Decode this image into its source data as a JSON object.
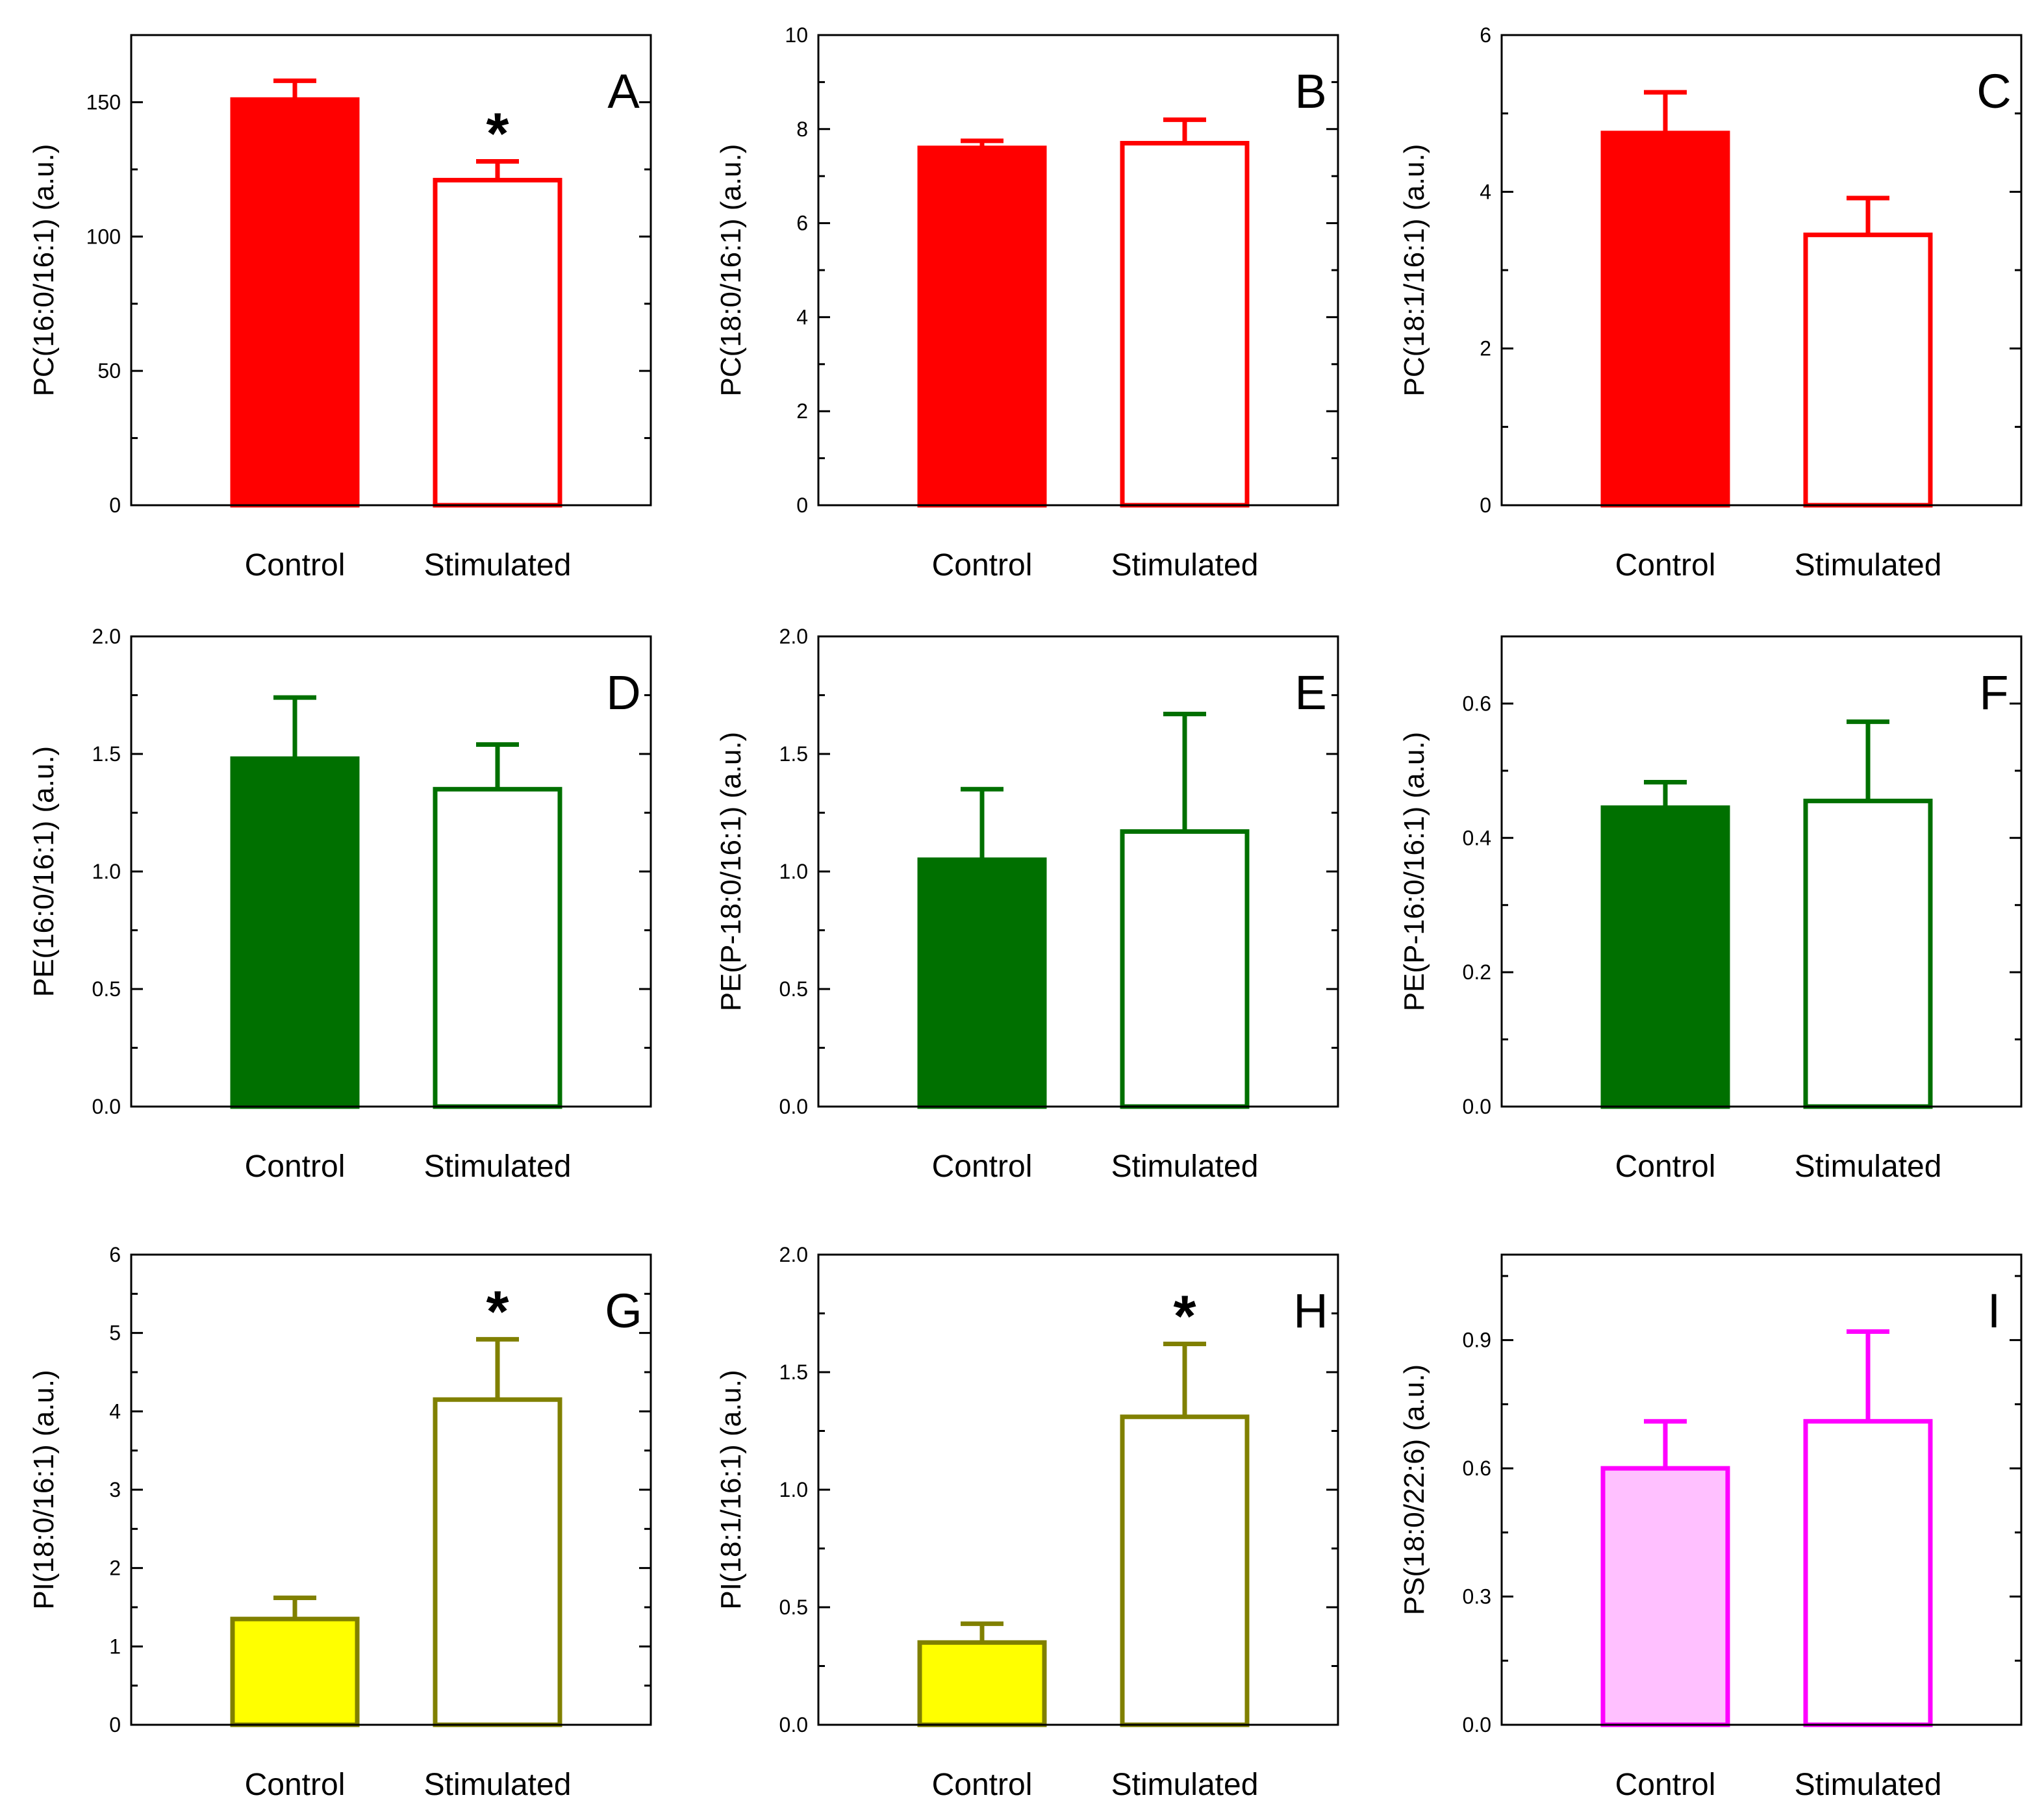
{
  "chart_data": [
    {
      "panel": "A",
      "type": "bar",
      "ylabel": "PC(16:0/16:1) (a.u.)",
      "ylim": [
        0,
        175
      ],
      "yticks": [
        0,
        50,
        100,
        150
      ],
      "categories": [
        "Control",
        "Stimulated"
      ],
      "values": [
        151,
        121
      ],
      "errors": [
        7,
        7
      ],
      "color": "#ff0000",
      "significant": [
        false,
        true
      ],
      "sig_marker": "*"
    },
    {
      "panel": "B",
      "type": "bar",
      "ylabel": "PC(18:0/16:1) (a.u.)",
      "ylim": [
        0,
        10
      ],
      "yticks": [
        0,
        2,
        4,
        6,
        8,
        10
      ],
      "categories": [
        "Control",
        "Stimulated"
      ],
      "values": [
        7.6,
        7.7
      ],
      "errors": [
        0.15,
        0.5
      ],
      "color": "#ff0000",
      "significant": [
        false,
        false
      ],
      "sig_marker": "*"
    },
    {
      "panel": "C",
      "type": "bar",
      "ylabel": "PC(18:1/16:1) (a.u.)",
      "ylim": [
        0,
        6
      ],
      "yticks": [
        0,
        2,
        4,
        6
      ],
      "categories": [
        "Control",
        "Stimulated"
      ],
      "values": [
        4.75,
        3.45
      ],
      "errors": [
        0.52,
        0.47
      ],
      "color": "#ff0000",
      "significant": [
        false,
        false
      ],
      "sig_marker": "*"
    },
    {
      "panel": "D",
      "type": "bar",
      "ylabel": "PE(16:0/16:1) (a.u.)",
      "ylim": [
        0,
        2.0
      ],
      "yticks": [
        0.0,
        0.5,
        1.0,
        1.5,
        2.0
      ],
      "categories": [
        "Control",
        "Stimulated"
      ],
      "values": [
        1.48,
        1.35
      ],
      "errors": [
        0.26,
        0.19
      ],
      "color": "#007000",
      "significant": [
        false,
        false
      ],
      "sig_marker": "*"
    },
    {
      "panel": "E",
      "type": "bar",
      "ylabel": "PE(P-18:0/16:1) (a.u.)",
      "ylim": [
        0,
        2.0
      ],
      "yticks": [
        0.0,
        0.5,
        1.0,
        1.5,
        2.0
      ],
      "categories": [
        "Control",
        "Stimulated"
      ],
      "values": [
        1.05,
        1.17
      ],
      "errors": [
        0.3,
        0.5
      ],
      "color": "#007000",
      "significant": [
        false,
        false
      ],
      "sig_marker": "*"
    },
    {
      "panel": "F",
      "type": "bar",
      "ylabel": "PE(P-16:0/16:1) (a.u.)",
      "ylim": [
        0,
        0.7
      ],
      "yticks": [
        0.0,
        0.2,
        0.4,
        0.6
      ],
      "categories": [
        "Control",
        "Stimulated"
      ],
      "values": [
        0.445,
        0.455
      ],
      "errors": [
        0.038,
        0.118
      ],
      "color": "#007000",
      "significant": [
        false,
        false
      ],
      "sig_marker": "*"
    },
    {
      "panel": "G",
      "type": "bar",
      "ylabel": "PI(18:0/16:1) (a.u.)",
      "ylim": [
        0,
        6
      ],
      "yticks": [
        0,
        1,
        2,
        3,
        4,
        5,
        6
      ],
      "categories": [
        "Control",
        "Stimulated"
      ],
      "values": [
        1.35,
        4.15
      ],
      "errors": [
        0.27,
        0.77
      ],
      "color": "#ffff00",
      "edge_color": "#808000",
      "significant": [
        false,
        true
      ],
      "sig_marker": "*"
    },
    {
      "panel": "H",
      "type": "bar",
      "ylabel": "PI(18:1/16:1) (a.u.)",
      "ylim": [
        0,
        2.0
      ],
      "yticks": [
        0.0,
        0.5,
        1.0,
        1.5,
        2.0
      ],
      "categories": [
        "Control",
        "Stimulated"
      ],
      "values": [
        0.35,
        1.31
      ],
      "errors": [
        0.08,
        0.31
      ],
      "color": "#ffff00",
      "edge_color": "#808000",
      "significant": [
        false,
        true
      ],
      "sig_marker": "*"
    },
    {
      "panel": "I",
      "type": "bar",
      "ylabel": "PS(18:0/22:6) (a.u.)",
      "ylim": [
        0,
        1.1
      ],
      "yticks": [
        0.0,
        0.3,
        0.6,
        0.9
      ],
      "categories": [
        "Control",
        "Stimulated"
      ],
      "values": [
        0.6,
        0.71
      ],
      "errors": [
        0.11,
        0.21
      ],
      "color": "#ffc0ff",
      "edge_color": "#ff00ff",
      "significant": [
        false,
        false
      ],
      "sig_marker": "*"
    }
  ]
}
